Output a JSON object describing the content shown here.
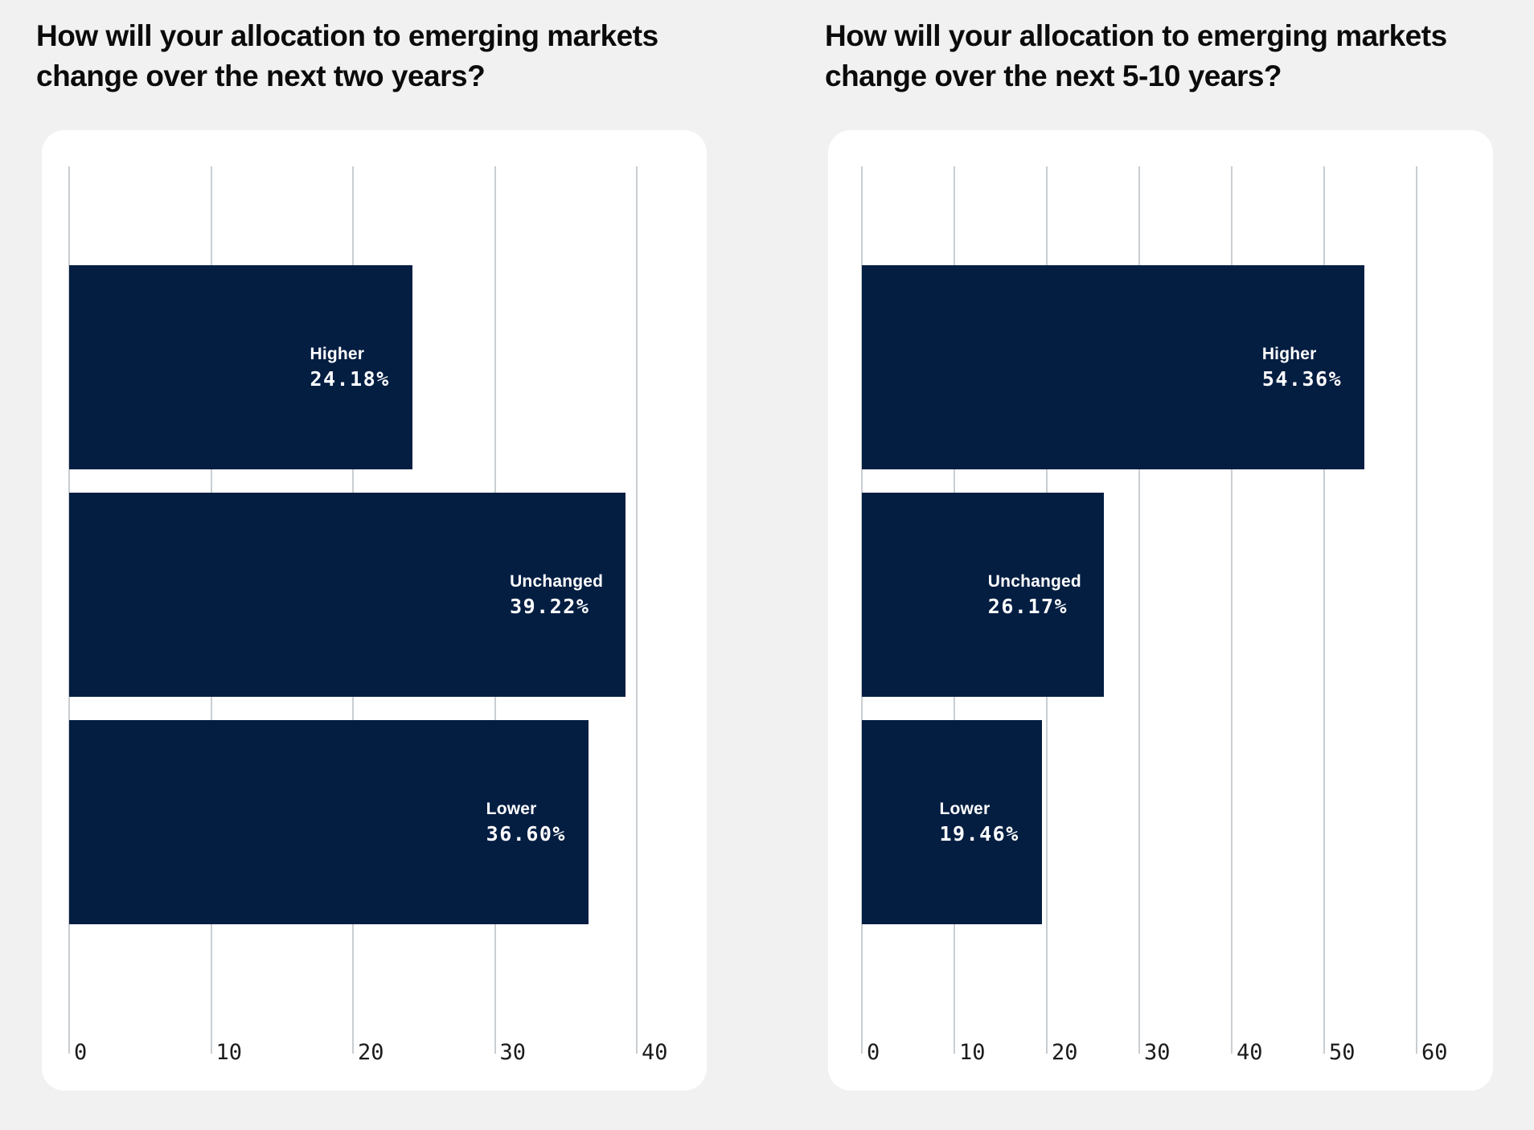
{
  "page": {
    "background_color": "#f1f1f2",
    "card_color": "#ffffff",
    "gridline_color": "#c9ced2",
    "bar_color": "#041e42",
    "text_color": "#0b0b0b"
  },
  "chart_data": [
    {
      "type": "bar",
      "orientation": "horizontal",
      "title": "How will your allocation to emerging markets change over the next two years?",
      "title_lines": [
        "How will your allocation to emerging markets",
        "change over the next two years?"
      ],
      "categories": [
        "Higher",
        "Unchanged",
        "Lower"
      ],
      "values": [
        24.18,
        39.22,
        36.6
      ],
      "value_labels": [
        "24.18%",
        "39.22%",
        "36.60%"
      ],
      "xlim": [
        0,
        40
      ],
      "xticks": [
        0,
        10,
        20,
        30,
        40
      ],
      "bar_color": "#041e42",
      "grid": true,
      "legend": false
    },
    {
      "type": "bar",
      "orientation": "horizontal",
      "title": "How will your allocation to emerging markets change over the next 5-10 years?",
      "title_lines": [
        "How will your allocation to emerging markets",
        "change over the next 5-10 years?"
      ],
      "categories": [
        "Higher",
        "Unchanged",
        "Lower"
      ],
      "values": [
        54.36,
        26.17,
        19.46
      ],
      "value_labels": [
        "54.36%",
        "26.17%",
        "19.46%"
      ],
      "xlim": [
        0,
        60
      ],
      "xticks": [
        0,
        10,
        20,
        30,
        40,
        50,
        60
      ],
      "bar_color": "#041e42",
      "grid": true,
      "legend": false
    }
  ]
}
